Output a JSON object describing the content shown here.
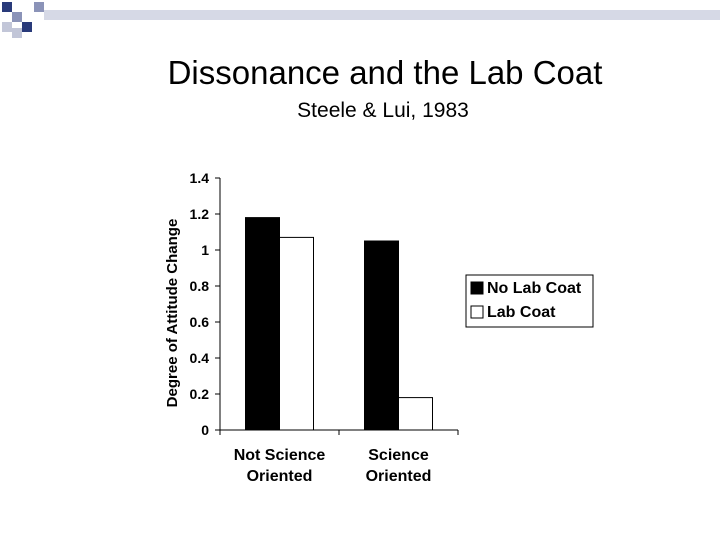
{
  "slide": {
    "title": "Dissonance and the Lab Coat",
    "subtitle": "Steele & Lui, 1983"
  },
  "colors": {
    "accent_dark": "#293a7a",
    "accent_mid": "#8b93b8",
    "accent_light": "#c2c6d8",
    "bar_no_lab_coat": "#000000",
    "bar_lab_coat": "#ffffff"
  },
  "chart_data": {
    "type": "bar",
    "ylabel": "Degree of Attitude Change",
    "xlabel": "",
    "ylim": [
      0,
      1.4
    ],
    "yticks": [
      "0",
      "0.2",
      "0.4",
      "0.6",
      "0.8",
      "1",
      "1.2",
      "1.4"
    ],
    "categories": [
      "Not Science Oriented",
      "Science Oriented"
    ],
    "category_lines": [
      [
        "Not Science",
        "Oriented"
      ],
      [
        "Science",
        "Oriented"
      ]
    ],
    "series": [
      {
        "name": "No Lab Coat",
        "values": [
          1.18,
          1.05
        ]
      },
      {
        "name": "Lab Coat",
        "values": [
          1.07,
          0.18
        ]
      }
    ],
    "legend_position": "right",
    "grid": false
  }
}
